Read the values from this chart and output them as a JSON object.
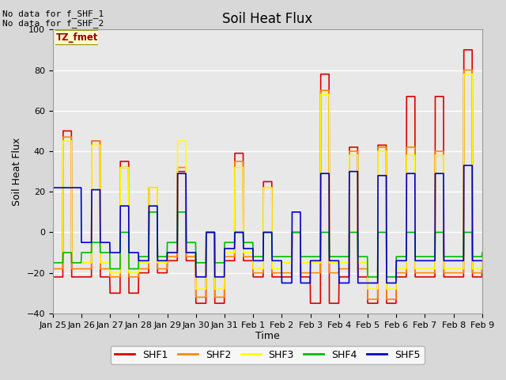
{
  "title": "Soil Heat Flux",
  "xlabel": "Time",
  "ylabel": "Soil Heat Flux",
  "ylim": [
    -40,
    100
  ],
  "yticks": [
    -40,
    -20,
    0,
    20,
    40,
    60,
    80,
    100
  ],
  "annotation_line1": "No data for f_SHF_1",
  "annotation_line2": "No data for f_SHF_2",
  "tz_label": "TZ_fmet",
  "x_tick_labels": [
    "Jan 25",
    "Jan 26",
    "Jan 27",
    "Jan 28",
    "Jan 29",
    "Jan 30",
    "Jan 31",
    "Feb 1",
    "Feb 2",
    "Feb 3",
    "Feb 4",
    "Feb 5",
    "Feb 6",
    "Feb 7",
    "Feb 8",
    "Feb 9"
  ],
  "n_ticks": 16,
  "colors": {
    "SHF1": "#dd0000",
    "SHF2": "#ff8800",
    "SHF3": "#ffff00",
    "SHF4": "#00bb00",
    "SHF5": "#0000cc"
  },
  "bg_color": "#d8d8d8",
  "plot_bg_color": "#e8e8e8",
  "grid_color": "#ffffff",
  "title_fontsize": 12,
  "label_fontsize": 9,
  "tick_fontsize": 8,
  "legend_fontsize": 9
}
